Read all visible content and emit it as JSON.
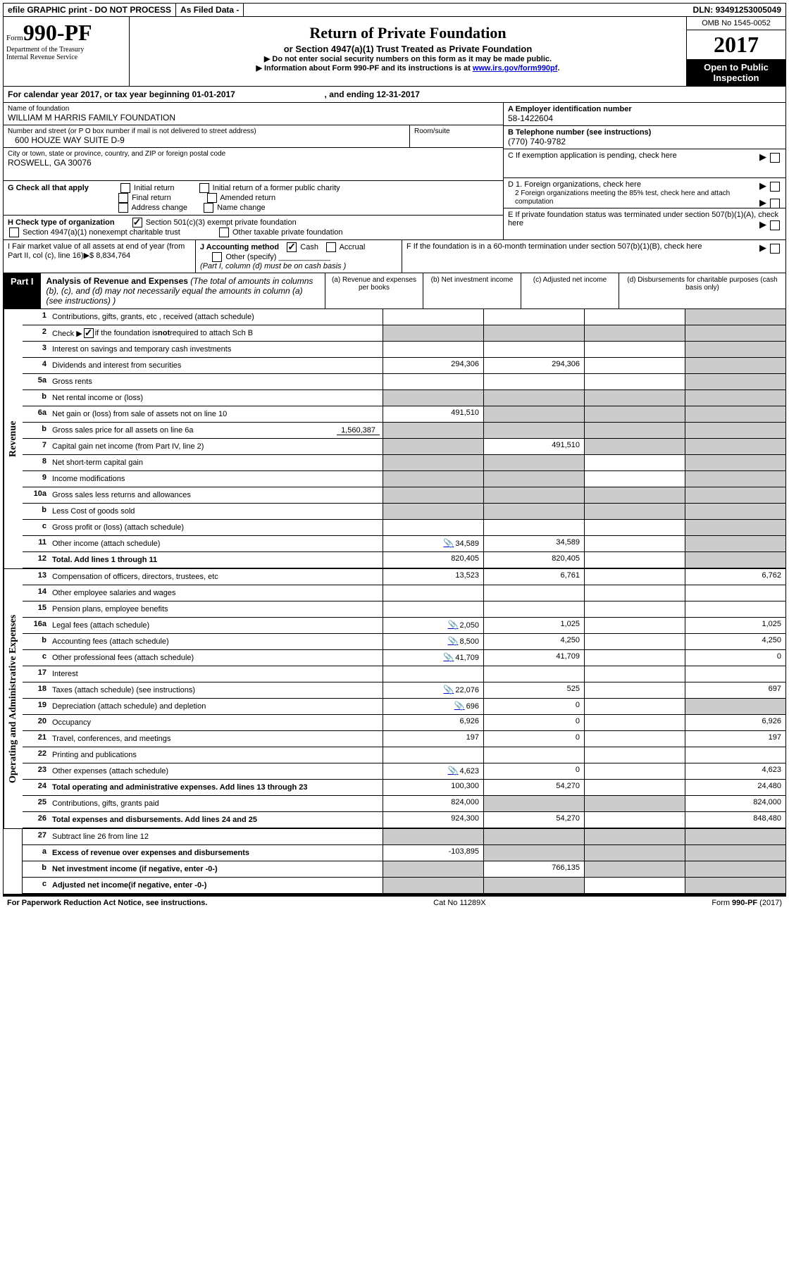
{
  "topbar": {
    "efile": "efile GRAPHIC print - DO NOT PROCESS",
    "asfiled": "As Filed Data -",
    "dln_label": "DLN:",
    "dln": "93491253005049"
  },
  "header": {
    "form_prefix": "Form",
    "form_number": "990-PF",
    "dept": "Department of the Treasury\nInternal Revenue Service",
    "title": "Return of Private Foundation",
    "subtitle": "or Section 4947(a)(1) Trust Treated as Private Foundation",
    "note1": "▶ Do not enter social security numbers on this form as it may be made public.",
    "note2_pre": "▶ Information about Form 990-PF and its instructions is at ",
    "note2_link": "www.irs.gov/form990pf",
    "omb": "OMB No  1545-0052",
    "year": "2017",
    "open": "Open to Public Inspection"
  },
  "calyear": {
    "text_a": "For calendar year 2017, or tax year beginning ",
    "begin": "01-01-2017",
    "text_b": ", and ending ",
    "end": "12-31-2017"
  },
  "id": {
    "name_label": "Name of foundation",
    "name": "WILLIAM M HARRIS FAMILY FOUNDATION",
    "addr_label": "Number and street (or P O  box number if mail is not delivered to street address)",
    "room_label": "Room/suite",
    "addr": "600 HOUZE WAY SUITE D-9",
    "city_label": "City or town, state or province, country, and ZIP or foreign postal code",
    "city": "ROSWELL, GA  30076",
    "a_label": "A Employer identification number",
    "a_val": "58-1422604",
    "b_label": "B Telephone number (see instructions)",
    "b_val": "(770) 740-9782",
    "c_label": "C  If exemption application is pending, check here",
    "g_label": "G Check all that apply",
    "g1": "Initial return",
    "g2": "Initial return of a former public charity",
    "g3": "Final return",
    "g4": "Amended return",
    "g5": "Address change",
    "g6": "Name change",
    "d1": "D 1. Foreign organizations, check here",
    "d2": "2  Foreign organizations meeting the 85% test, check here and attach computation",
    "e": "E  If private foundation status was terminated under section 507(b)(1)(A), check here",
    "h_label": "H Check type of organization",
    "h1": "Section 501(c)(3) exempt private foundation",
    "h2": "Section 4947(a)(1) nonexempt charitable trust",
    "h3": "Other taxable private foundation",
    "f": "F  If the foundation is in a 60-month termination under section 507(b)(1)(B), check here",
    "i_label": "I Fair market value of all assets at end of year (from Part II, col  (c), line 16)▶$",
    "i_val": "8,834,764",
    "j_label": "J Accounting method",
    "j1": "Cash",
    "j2": "Accrual",
    "j3": "Other (specify)",
    "j_note": "(Part I, column (d) must be on cash basis )"
  },
  "part1": {
    "label": "Part I",
    "title_b": "Analysis of Revenue and Expenses",
    "title_i": "(The total of amounts in columns (b), (c), and (d) may not necessarily equal the amounts in column (a) (see instructions) )",
    "col_a": "(a) Revenue and expenses per books",
    "col_b": "(b) Net investment income",
    "col_c": "(c) Adjusted net income",
    "col_d": "(d) Disbursements for charitable purposes (cash basis only)"
  },
  "side": {
    "rev": "Revenue",
    "exp": "Operating and Administrative Expenses"
  },
  "lines": {
    "l1": {
      "no": "1",
      "desc": "Contributions, gifts, grants, etc , received (attach schedule)"
    },
    "l2": {
      "no": "2",
      "desc_a": "Check ▶ ",
      "desc_b": " if the foundation is ",
      "desc_c": "not",
      "desc_d": " required to attach Sch  B"
    },
    "l3": {
      "no": "3",
      "desc": "Interest on savings and temporary cash investments"
    },
    "l4": {
      "no": "4",
      "desc": "Dividends and interest from securities",
      "a": "294,306",
      "b": "294,306"
    },
    "l5a": {
      "no": "5a",
      "desc": "Gross rents"
    },
    "l5b": {
      "no": "b",
      "desc": "Net rental income or (loss)"
    },
    "l6a": {
      "no": "6a",
      "desc": "Net gain or (loss) from sale of assets not on line 10",
      "a": "491,510"
    },
    "l6b": {
      "no": "b",
      "desc": "Gross sales price for all assets on line 6a",
      "inline": "1,560,387"
    },
    "l7": {
      "no": "7",
      "desc": "Capital gain net income (from Part IV, line 2)",
      "b": "491,510"
    },
    "l8": {
      "no": "8",
      "desc": "Net short-term capital gain"
    },
    "l9": {
      "no": "9",
      "desc": "Income modifications"
    },
    "l10a": {
      "no": "10a",
      "desc": "Gross sales less returns and allowances"
    },
    "l10b": {
      "no": "b",
      "desc": "Less  Cost of goods sold"
    },
    "l10c": {
      "no": "c",
      "desc": "Gross profit or (loss) (attach schedule)"
    },
    "l11": {
      "no": "11",
      "desc": "Other income (attach schedule)",
      "a": "34,589",
      "b": "34,589",
      "icon": true
    },
    "l12": {
      "no": "12",
      "desc": "Total. Add lines 1 through 11",
      "a": "820,405",
      "b": "820,405",
      "bold": true
    },
    "l13": {
      "no": "13",
      "desc": "Compensation of officers, directors, trustees, etc",
      "a": "13,523",
      "b": "6,761",
      "d": "6,762"
    },
    "l14": {
      "no": "14",
      "desc": "Other employee salaries and wages"
    },
    "l15": {
      "no": "15",
      "desc": "Pension plans, employee benefits"
    },
    "l16a": {
      "no": "16a",
      "desc": "Legal fees (attach schedule)",
      "a": "2,050",
      "b": "1,025",
      "d": "1,025",
      "icon": true
    },
    "l16b": {
      "no": "b",
      "desc": "Accounting fees (attach schedule)",
      "a": "8,500",
      "b": "4,250",
      "d": "4,250",
      "icon": true
    },
    "l16c": {
      "no": "c",
      "desc": "Other professional fees (attach schedule)",
      "a": "41,709",
      "b": "41,709",
      "d": "0",
      "icon": true
    },
    "l17": {
      "no": "17",
      "desc": "Interest"
    },
    "l18": {
      "no": "18",
      "desc": "Taxes (attach schedule) (see instructions)",
      "a": "22,076",
      "b": "525",
      "d": "697",
      "icon": true
    },
    "l19": {
      "no": "19",
      "desc": "Depreciation (attach schedule) and depletion",
      "a": "696",
      "b": "0",
      "icon": true
    },
    "l20": {
      "no": "20",
      "desc": "Occupancy",
      "a": "6,926",
      "b": "0",
      "d": "6,926"
    },
    "l21": {
      "no": "21",
      "desc": "Travel, conferences, and meetings",
      "a": "197",
      "b": "0",
      "d": "197"
    },
    "l22": {
      "no": "22",
      "desc": "Printing and publications"
    },
    "l23": {
      "no": "23",
      "desc": "Other expenses (attach schedule)",
      "a": "4,623",
      "b": "0",
      "d": "4,623",
      "icon": true
    },
    "l24": {
      "no": "24",
      "desc": "Total operating and administrative expenses. Add lines 13 through 23",
      "a": "100,300",
      "b": "54,270",
      "d": "24,480",
      "bold": true
    },
    "l25": {
      "no": "25",
      "desc": "Contributions, gifts, grants paid",
      "a": "824,000",
      "d": "824,000"
    },
    "l26": {
      "no": "26",
      "desc": "Total expenses and disbursements. Add lines 24 and 25",
      "a": "924,300",
      "b": "54,270",
      "d": "848,480",
      "bold": true
    },
    "l27": {
      "no": "27",
      "desc": "Subtract line 26 from line 12"
    },
    "l27a": {
      "no": "a",
      "desc": "Excess of revenue over expenses and disbursements",
      "a": "-103,895",
      "bold": true
    },
    "l27b": {
      "no": "b",
      "desc": "Net investment income (if negative, enter -0-)",
      "b": "766,135",
      "bold": true
    },
    "l27c": {
      "no": "c",
      "desc": "Adjusted net income(if negative, enter -0-)",
      "bold": true
    }
  },
  "footer": {
    "left": "For Paperwork Reduction Act Notice, see instructions.",
    "mid": "Cat  No  11289X",
    "right": "Form 990-PF (2017)"
  },
  "colors": {
    "shade": "#cccccc"
  }
}
